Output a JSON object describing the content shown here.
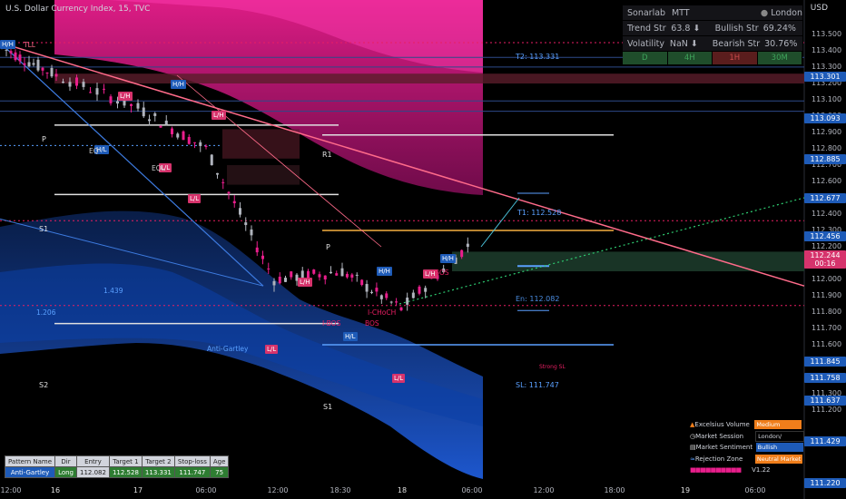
{
  "header": {
    "title": "U.S. Dollar Currency Index, 15, TVC",
    "currency": "USD"
  },
  "panel": {
    "row1": [
      "Sonarlab",
      "MTT",
      "",
      "London"
    ],
    "row2": [
      "Trend Str",
      "63.8 ⬇",
      "Bullish Str",
      "69.24%"
    ],
    "row3": [
      "Volatility",
      "NaN ⬇",
      "Bearish Str",
      "30.76%"
    ],
    "timeframes": [
      "D",
      "4H",
      "1H",
      "30M"
    ],
    "tf_colors": [
      "#1f4d2b",
      "#1f4d2b",
      "#5a1d1d",
      "#1f4d2b"
    ]
  },
  "price_axis": {
    "ticks": [
      "113.500",
      "113.400",
      "113.300",
      "113.200",
      "113.100",
      "113.000",
      "112.900",
      "112.800",
      "112.700",
      "112.600",
      "112.500",
      "112.400",
      "112.300",
      "112.200",
      "112.100",
      "112.000",
      "111.900",
      "111.800",
      "111.700",
      "111.600",
      "111.500",
      "111.400",
      "111.300",
      "111.200"
    ],
    "labels": [
      {
        "text": "113.301",
        "bg": "#1e5bb8"
      },
      {
        "text": "113.093",
        "bg": "#1e5bb8"
      },
      {
        "text": "112.885",
        "bg": "#1e5bb8"
      },
      {
        "text": "112.677",
        "bg": "#1e5bb8"
      },
      {
        "text": "112.456",
        "bg": "#1e5bb8"
      },
      {
        "text": "112.244",
        "bg": "#d6336c"
      },
      {
        "text": "00:16",
        "bg": "#d6336c"
      },
      {
        "text": "111.845",
        "bg": "#1e5bb8"
      },
      {
        "text": "111.758",
        "bg": "#1e5bb8"
      },
      {
        "text": "111.637",
        "bg": "#1e5bb8"
      },
      {
        "text": "111.429",
        "bg": "#1e5bb8"
      },
      {
        "text": "111.220",
        "bg": "#1e5bb8"
      }
    ]
  },
  "time_axis": [
    "12:00",
    "16",
    "17",
    "06:00",
    "12:00",
    "18:30",
    "18",
    "06:00",
    "12:00",
    "18:00",
    "19",
    "06:00"
  ],
  "chart_data": {
    "type": "line",
    "title": "U.S. Dollar Currency Index, 15, TVC",
    "x": [
      "12:00",
      "16",
      "17",
      "06:00",
      "12:00",
      "18:30",
      "18",
      "06:00"
    ],
    "series": [
      {
        "name": "Close",
        "values": [
          113.42,
          113.25,
          113.05,
          112.8,
          112.0,
          112.05,
          111.82,
          112.24
        ]
      }
    ],
    "ylim": [
      111.15,
      113.55
    ],
    "xlabel": "",
    "ylabel": "",
    "grid": false
  },
  "annotations": {
    "structure_tags": [
      {
        "text": "H/H",
        "color": "#1e5bb8"
      },
      {
        "text": "L/H",
        "color": "#d6336c"
      },
      {
        "text": "H/H",
        "color": "#1e5bb8"
      },
      {
        "text": "L/H",
        "color": "#d6336c"
      },
      {
        "text": "H/L",
        "color": "#1e5bb8"
      },
      {
        "text": "L/L",
        "color": "#d6336c"
      },
      {
        "text": "L/L",
        "color": "#d6336c"
      },
      {
        "text": "H/H",
        "color": "#1e5bb8"
      },
      {
        "text": "L/H",
        "color": "#d6336c"
      },
      {
        "text": "H/L",
        "color": "#1e5bb8"
      },
      {
        "text": "L/L",
        "color": "#d6336c"
      },
      {
        "text": "L/L",
        "color": "#d6336c"
      },
      {
        "text": "H/H",
        "color": "#1e5bb8"
      },
      {
        "text": "L/H",
        "color": "#d6336c"
      }
    ],
    "pivots": [
      "P",
      "R1",
      "S1",
      "P",
      "S1",
      "S2"
    ],
    "targets": {
      "t2": "T2: 113.331",
      "t1": "T1: 112.528",
      "entry": "En: 112.082",
      "stop": "SL: 111.747",
      "strong": "Strong SL"
    },
    "texts": [
      "TLL",
      "EQ",
      "EQL",
      "I-BOS",
      "BOS",
      "I-CHoCH",
      "BOS",
      "1.439",
      "1.206",
      "Anti-Gartley"
    ]
  },
  "pattern_table": {
    "headers": [
      "Pattern Name",
      "Dir",
      "Entry",
      "Target 1",
      "Target 2",
      "Stop-loss",
      "Age"
    ],
    "row": [
      "Anti-Gartley",
      "Long",
      "112.082",
      "112.528",
      "113.331",
      "111.747",
      "75"
    ]
  },
  "legend": {
    "items": [
      {
        "label": "Excelsius Volume",
        "value": "Medium",
        "bg": "#f07e1b"
      },
      {
        "label": "Market Session",
        "value": "London/",
        "bg": "#000000"
      },
      {
        "label": "Market Sentiment",
        "value": "Bullish",
        "bg": "#1e5bb8"
      },
      {
        "label": "Rejection Zone",
        "value": "Neutral Market",
        "bg": "#f07e1b"
      }
    ],
    "version": "V1.22"
  }
}
